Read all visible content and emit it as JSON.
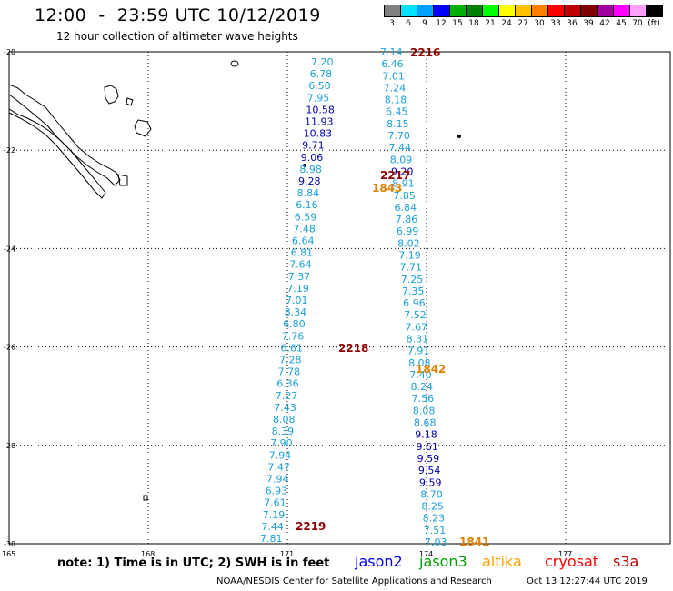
{
  "header": {
    "title": "12:00  -  23:59 UTC 10/12/2019",
    "subtitle": "12 hour collection of altimeter wave heights"
  },
  "colorbar": {
    "labels": [
      "3",
      "6",
      "9",
      "12",
      "15",
      "18",
      "21",
      "24",
      "27",
      "30",
      "33",
      "36",
      "39",
      "42",
      "45",
      "70",
      "(ft)"
    ],
    "colors": [
      "#808080",
      "#00e0ff",
      "#00a0ff",
      "#0000ff",
      "#00b000",
      "#008000",
      "#00ff00",
      "#ffff00",
      "#ffc000",
      "#ff8000",
      "#ff0000",
      "#c00000",
      "#800000",
      "#a000a0",
      "#ff00ff",
      "#ffa0ff",
      "#000000"
    ]
  },
  "axes": {
    "lat_labels": [
      "-20",
      "-22",
      "-24",
      "-26",
      "-28",
      "-30"
    ],
    "lon_labels": [
      "165",
      "168",
      "171",
      "174",
      "177"
    ]
  },
  "colors": {
    "light": "#1aa0d8",
    "dark": "#0000b0",
    "pass_label": "#900000",
    "orbit_label": "#e08000"
  },
  "track_west": [
    {
      "v": "7.20",
      "c": "light"
    },
    {
      "v": "6.78",
      "c": "light"
    },
    {
      "v": "6.50",
      "c": "light"
    },
    {
      "v": "7.95",
      "c": "light"
    },
    {
      "v": "10.58",
      "c": "dark"
    },
    {
      "v": "11.93",
      "c": "dark"
    },
    {
      "v": "10.83",
      "c": "dark"
    },
    {
      "v": "9.71",
      "c": "dark"
    },
    {
      "v": "9.06",
      "c": "dark"
    },
    {
      "v": "8.98",
      "c": "light"
    },
    {
      "v": "9.28",
      "c": "dark"
    },
    {
      "v": "8.84",
      "c": "light"
    },
    {
      "v": "6.16",
      "c": "light"
    },
    {
      "v": "6.59",
      "c": "light"
    },
    {
      "v": "7.48",
      "c": "light"
    },
    {
      "v": "6.64",
      "c": "light"
    },
    {
      "v": "6.81",
      "c": "light"
    },
    {
      "v": "7.64",
      "c": "light"
    },
    {
      "v": "7.37",
      "c": "light"
    },
    {
      "v": "7.19",
      "c": "light"
    },
    {
      "v": "7.01",
      "c": "light"
    },
    {
      "v": "8.34",
      "c": "light"
    },
    {
      "v": "6.80",
      "c": "light"
    },
    {
      "v": "7.76",
      "c": "light"
    },
    {
      "v": "6.61",
      "c": "light"
    },
    {
      "v": "7.28",
      "c": "light"
    },
    {
      "v": "7.78",
      "c": "light"
    },
    {
      "v": "6.36",
      "c": "light"
    },
    {
      "v": "7.27",
      "c": "light"
    },
    {
      "v": "7.43",
      "c": "light"
    },
    {
      "v": "8.08",
      "c": "light"
    },
    {
      "v": "8.39",
      "c": "light"
    },
    {
      "v": "7.90",
      "c": "light"
    },
    {
      "v": "7.94",
      "c": "light"
    },
    {
      "v": "7.47",
      "c": "light"
    },
    {
      "v": "7.94",
      "c": "light"
    },
    {
      "v": "6.93",
      "c": "light"
    },
    {
      "v": "7.61",
      "c": "light"
    },
    {
      "v": "7.19",
      "c": "light"
    },
    {
      "v": "7.44",
      "c": "light"
    },
    {
      "v": "7.81",
      "c": "light"
    }
  ],
  "track_east": [
    {
      "v": "7.14",
      "c": "light"
    },
    {
      "v": "6.46",
      "c": "light"
    },
    {
      "v": "7.01",
      "c": "light"
    },
    {
      "v": "7.24",
      "c": "light"
    },
    {
      "v": "8.18",
      "c": "light"
    },
    {
      "v": "6.45",
      "c": "light"
    },
    {
      "v": "8.15",
      "c": "light"
    },
    {
      "v": "7.70",
      "c": "light"
    },
    {
      "v": "7.44",
      "c": "light"
    },
    {
      "v": "8.09",
      "c": "light"
    },
    {
      "v": "9.20",
      "c": "dark"
    },
    {
      "v": "8.91",
      "c": "light"
    },
    {
      "v": "7.85",
      "c": "light"
    },
    {
      "v": "6.84",
      "c": "light"
    },
    {
      "v": "7.86",
      "c": "light"
    },
    {
      "v": "6.99",
      "c": "light"
    },
    {
      "v": "8.02",
      "c": "light"
    },
    {
      "v": "7.19",
      "c": "light"
    },
    {
      "v": "7.71",
      "c": "light"
    },
    {
      "v": "7.25",
      "c": "light"
    },
    {
      "v": "7.35",
      "c": "light"
    },
    {
      "v": "6.96",
      "c": "light"
    },
    {
      "v": "7.52",
      "c": "light"
    },
    {
      "v": "7.67",
      "c": "light"
    },
    {
      "v": "8.31",
      "c": "light"
    },
    {
      "v": "7.91",
      "c": "light"
    },
    {
      "v": "8.08",
      "c": "light"
    },
    {
      "v": "7.40",
      "c": "light"
    },
    {
      "v": "8.24",
      "c": "light"
    },
    {
      "v": "7.56",
      "c": "light"
    },
    {
      "v": "8.08",
      "c": "light"
    },
    {
      "v": "8.68",
      "c": "light"
    },
    {
      "v": "9.18",
      "c": "dark"
    },
    {
      "v": "9.61",
      "c": "dark"
    },
    {
      "v": "9.59",
      "c": "dark"
    },
    {
      "v": "9.54",
      "c": "dark"
    },
    {
      "v": "9.59",
      "c": "dark"
    },
    {
      "v": "8.70",
      "c": "light"
    },
    {
      "v": "8.25",
      "c": "light"
    },
    {
      "v": "8.23",
      "c": "light"
    },
    {
      "v": "7.51",
      "c": "light"
    },
    {
      "v": "7.03",
      "c": "light"
    }
  ],
  "pass_labels": [
    {
      "text": "2216",
      "type": "pass_label"
    },
    {
      "text": "2217",
      "type": "pass_label"
    },
    {
      "text": "1843",
      "type": "orbit_label"
    },
    {
      "text": "2218",
      "type": "pass_label"
    },
    {
      "text": "1842",
      "type": "orbit_label"
    },
    {
      "text": "2219",
      "type": "pass_label"
    },
    {
      "text": "1841",
      "type": "orbit_label"
    }
  ],
  "footer": {
    "note": "note:  1) Time is in UTC;  2) SWH is in feet",
    "satellites": [
      {
        "name": "jason2",
        "color": "#0000ff"
      },
      {
        "name": "jason3",
        "color": "#00a000"
      },
      {
        "name": "altika",
        "color": "#ffa000"
      },
      {
        "name": "cryosat",
        "color": "#ff0000"
      },
      {
        "name": "s3a",
        "color": "#c00000"
      }
    ],
    "credit": "NOAA/NESDIS Center for Satellite Applications and Research",
    "timestamp": "Oct 13 12:27:44 UTC 2019"
  }
}
